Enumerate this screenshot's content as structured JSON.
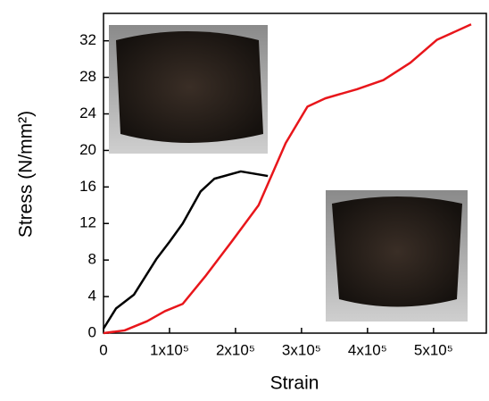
{
  "chart_data": {
    "type": "line",
    "x_label": "Strain",
    "y_label": "Stress (N/mm²)",
    "xlim": [
      0,
      580000
    ],
    "ylim": [
      0,
      35
    ],
    "xticks": [
      0,
      {
        "value": 100000,
        "label": "1x10⁵"
      },
      {
        "value": 200000,
        "label": "2x10⁵"
      },
      {
        "value": 300000,
        "label": "3x10⁵"
      },
      {
        "value": 400000,
        "label": "4x10⁵"
      },
      {
        "value": 500000,
        "label": "5x10⁵"
      }
    ],
    "yticks": [
      0,
      4,
      8,
      12,
      16,
      20,
      24,
      28,
      32
    ],
    "series": [
      {
        "color": "#000000",
        "x": [
          0,
          19000,
          46000,
          80000,
          100000,
          120000,
          147000,
          168000,
          208000,
          249000
        ],
        "values": [
          0.5,
          2.7,
          4.2,
          8.1,
          10,
          12,
          15.5,
          16.9,
          17.7,
          17.2
        ]
      },
      {
        "color": "#e8161b",
        "x": [
          0,
          32000,
          66000,
          93000,
          120000,
          154000,
          195000,
          235000,
          276000,
          309000,
          336000,
          384000,
          424000,
          465000,
          505000,
          557000
        ],
        "values": [
          0,
          0.3,
          1.3,
          2.4,
          3.2,
          6.2,
          10.1,
          14,
          20.8,
          24.8,
          25.7,
          26.7,
          27.7,
          29.6,
          32.1,
          33.8
        ]
      }
    ]
  }
}
